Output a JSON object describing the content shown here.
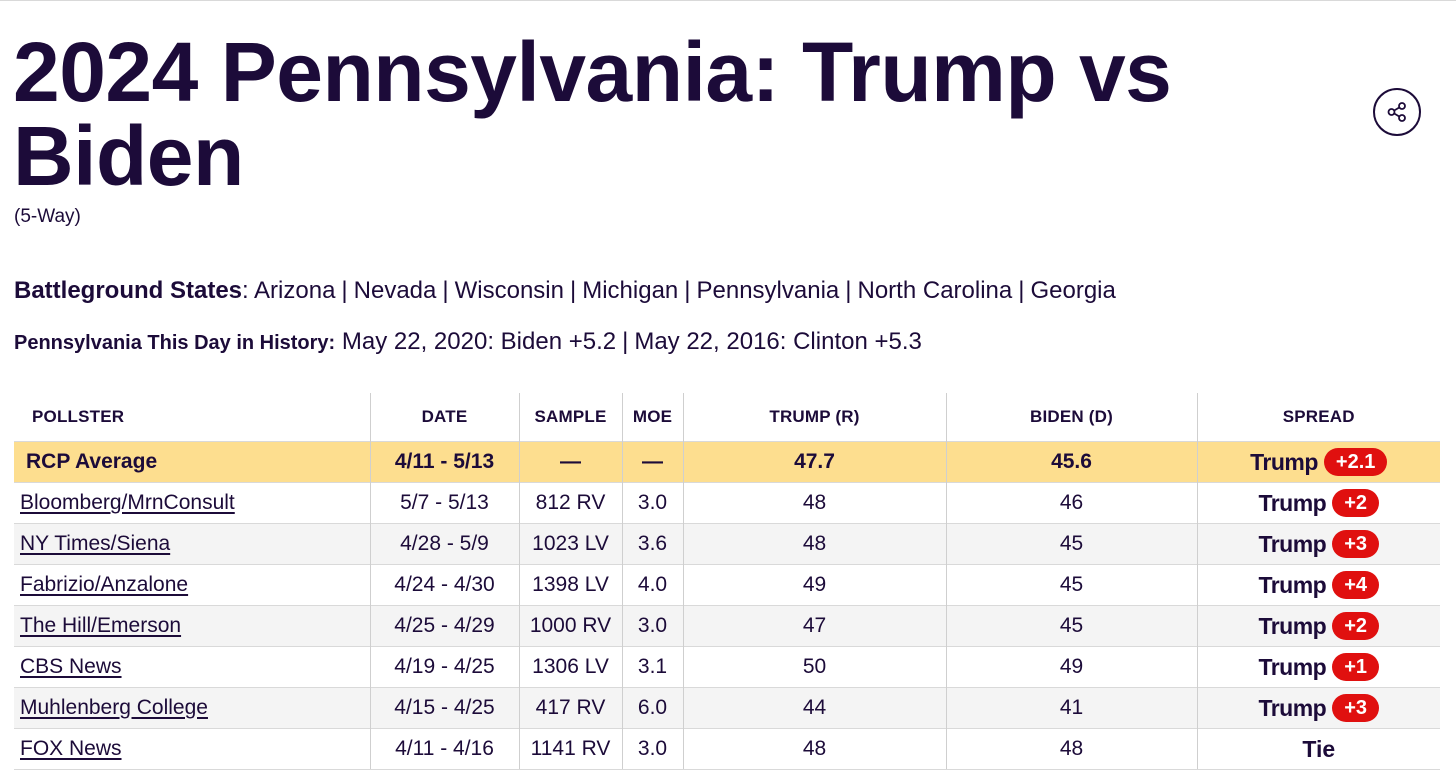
{
  "page": {
    "title": "2024 Pennsylvania: Trump vs Biden",
    "subtitle": "(5-Way)",
    "share_icon": "share-icon"
  },
  "battleground": {
    "label": "Battleground States",
    "colon": ": ",
    "states": [
      "Arizona",
      "Nevada",
      "Wisconsin",
      "Michigan",
      "Pennsylvania",
      "North Carolina",
      "Georgia"
    ]
  },
  "history": {
    "label": "Pennsylvania This Day in History:",
    "entries": [
      "May 22, 2020: Biden +5.2",
      "May 22, 2016: Clinton +5.3"
    ]
  },
  "table": {
    "headers": [
      "POLLSTER",
      "DATE",
      "SAMPLE",
      "MOE",
      "TRUMP (R)",
      "BIDEN (D)",
      "SPREAD"
    ],
    "average": {
      "pollster": "RCP Average",
      "date": "4/11 - 5/13",
      "sample": "—",
      "moe": "—",
      "trump": "47.7",
      "biden": "45.6",
      "spread_winner": "Trump",
      "spread_value": "+2.1"
    },
    "rows": [
      {
        "pollster": "Bloomberg/MrnConsult",
        "date": "5/7 - 5/13",
        "sample": "812 RV",
        "moe": "3.0",
        "trump": "48",
        "biden": "46",
        "spread_winner": "Trump",
        "spread_value": "+2"
      },
      {
        "pollster": "NY Times/Siena",
        "date": "4/28 - 5/9",
        "sample": "1023 LV",
        "moe": "3.6",
        "trump": "48",
        "biden": "45",
        "spread_winner": "Trump",
        "spread_value": "+3"
      },
      {
        "pollster": "Fabrizio/Anzalone",
        "date": "4/24 - 4/30",
        "sample": "1398 LV",
        "moe": "4.0",
        "trump": "49",
        "biden": "45",
        "spread_winner": "Trump",
        "spread_value": "+4"
      },
      {
        "pollster": "The Hill/Emerson",
        "date": "4/25 - 4/29",
        "sample": "1000 RV",
        "moe": "3.0",
        "trump": "47",
        "biden": "45",
        "spread_winner": "Trump",
        "spread_value": "+2"
      },
      {
        "pollster": "CBS News",
        "date": "4/19 - 4/25",
        "sample": "1306 LV",
        "moe": "3.1",
        "trump": "50",
        "biden": "49",
        "spread_winner": "Trump",
        "spread_value": "+1"
      },
      {
        "pollster": "Muhlenberg College",
        "date": "4/15 - 4/25",
        "sample": "417 RV",
        "moe": "6.0",
        "trump": "44",
        "biden": "41",
        "spread_winner": "Trump",
        "spread_value": "+3"
      },
      {
        "pollster": "FOX News",
        "date": "4/11 - 4/16",
        "sample": "1141 RV",
        "moe": "3.0",
        "trump": "48",
        "biden": "48",
        "spread_winner": "Tie",
        "spread_value": ""
      }
    ]
  },
  "colors": {
    "text": "#1c0b39",
    "average_row_bg": "#fdde8f",
    "spread_badge_bg": "#e0100f",
    "alt_row_bg": "#f4f4f4"
  }
}
